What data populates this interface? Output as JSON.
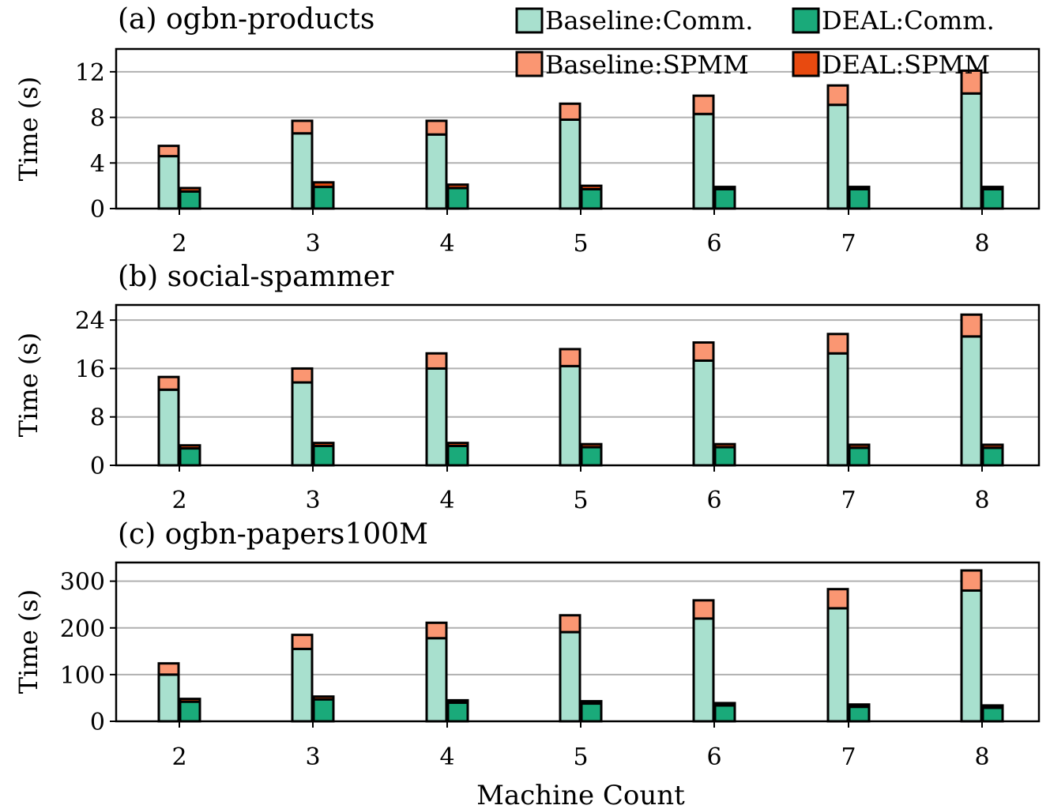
{
  "colors": {
    "baseline_comm": "#a8e0ce",
    "deal_comm": "#1aaa7a",
    "baseline_spmm": "#fa9672",
    "deal_spmm": "#e84a10",
    "grid": "#b0b0b0",
    "edge": "#000000"
  },
  "xlabel": "Machine Count",
  "legend": [
    {
      "key": "baseline_comm",
      "label": "Baseline:Comm."
    },
    {
      "key": "deal_comm",
      "label": "DEAL:Comm."
    },
    {
      "key": "baseline_spmm",
      "label": "Baseline:SPMM"
    },
    {
      "key": "deal_spmm",
      "label": "DEAL:SPMM"
    }
  ],
  "chart_data": [
    {
      "type": "bar",
      "stacked": true,
      "title": "(a) ogbn-products",
      "ylabel": "Time (s)",
      "ylim": [
        0,
        14
      ],
      "yticks": [
        0,
        4,
        8,
        12
      ],
      "categories": [
        "2",
        "3",
        "4",
        "5",
        "6",
        "7",
        "8"
      ],
      "series": [
        {
          "name": "Baseline:Comm.",
          "values": [
            4.6,
            6.6,
            6.5,
            7.8,
            8.3,
            9.1,
            10.1
          ]
        },
        {
          "name": "Baseline:SPMM",
          "values": [
            0.9,
            1.1,
            1.2,
            1.4,
            1.6,
            1.7,
            2.0
          ]
        },
        {
          "name": "DEAL:Comm.",
          "values": [
            1.5,
            1.9,
            1.8,
            1.7,
            1.7,
            1.7,
            1.7
          ]
        },
        {
          "name": "DEAL:SPMM",
          "values": [
            0.3,
            0.4,
            0.3,
            0.3,
            0.2,
            0.2,
            0.2
          ]
        }
      ]
    },
    {
      "type": "bar",
      "stacked": true,
      "title": "(b) social-spammer",
      "ylabel": "Time (s)",
      "ylim": [
        0,
        26.5
      ],
      "yticks": [
        0,
        8,
        16,
        24
      ],
      "categories": [
        "2",
        "3",
        "4",
        "5",
        "6",
        "7",
        "8"
      ],
      "series": [
        {
          "name": "Baseline:Comm.",
          "values": [
            12.5,
            13.7,
            16.0,
            16.4,
            17.3,
            18.5,
            21.3
          ]
        },
        {
          "name": "Baseline:SPMM",
          "values": [
            2.1,
            2.3,
            2.5,
            2.8,
            3.0,
            3.2,
            3.6
          ]
        },
        {
          "name": "DEAL:Comm.",
          "values": [
            2.8,
            3.2,
            3.2,
            3.0,
            3.0,
            2.9,
            2.9
          ]
        },
        {
          "name": "DEAL:SPMM",
          "values": [
            0.5,
            0.5,
            0.5,
            0.5,
            0.5,
            0.5,
            0.5
          ]
        }
      ]
    },
    {
      "type": "bar",
      "stacked": true,
      "title": "(c) ogbn-papers100M",
      "ylabel": "Time (s)",
      "ylim": [
        0,
        340
      ],
      "yticks": [
        0,
        100,
        200,
        300
      ],
      "categories": [
        "2",
        "3",
        "4",
        "5",
        "6",
        "7",
        "8"
      ],
      "series": [
        {
          "name": "Baseline:Comm.",
          "values": [
            100,
            155,
            178,
            191,
            220,
            242,
            280
          ]
        },
        {
          "name": "Baseline:SPMM",
          "values": [
            24,
            30,
            33,
            36,
            39,
            41,
            43
          ]
        },
        {
          "name": "DEAL:Comm.",
          "values": [
            42,
            47,
            40,
            38,
            34,
            31,
            29
          ]
        },
        {
          "name": "DEAL:SPMM",
          "values": [
            6,
            6,
            5,
            5,
            5,
            5,
            5
          ]
        }
      ]
    }
  ]
}
